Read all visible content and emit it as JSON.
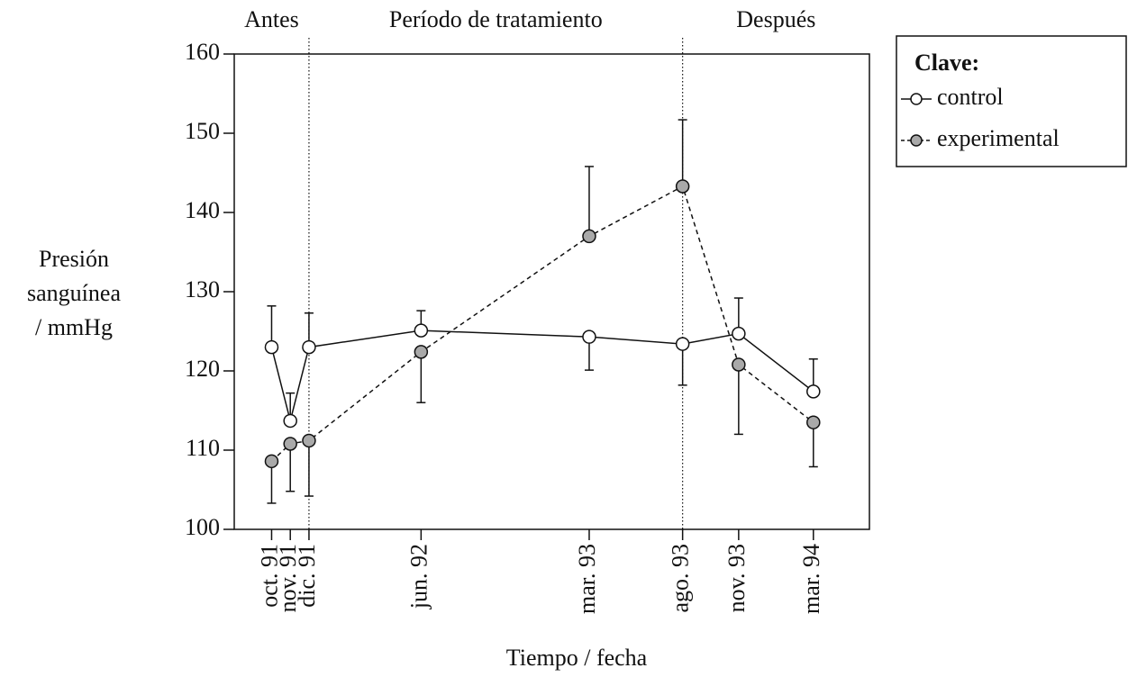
{
  "chart_data": {
    "type": "line",
    "xlabel": "Tiempo / fecha",
    "ylabel": [
      "Presión",
      "sanguínea",
      "/ mmHg"
    ],
    "x": [
      "1991-10",
      "1991-11",
      "1991-12",
      "1992-06",
      "1993-03",
      "1993-08",
      "1993-11",
      "1994-03"
    ],
    "xticks": [
      {
        "value": "1991-10",
        "label": "oct. 91"
      },
      {
        "value": "1991-11",
        "label": "nov. 91"
      },
      {
        "value": "1991-12",
        "label": "dic. 91"
      },
      {
        "value": "1992-06",
        "label": "jun. 92"
      },
      {
        "value": "1993-03",
        "label": "mar. 93"
      },
      {
        "value": "1993-08",
        "label": "ago. 93"
      },
      {
        "value": "1993-11",
        "label": "nov. 93"
      },
      {
        "value": "1994-03",
        "label": "mar. 94"
      }
    ],
    "xlim": [
      "1991-08",
      "1994-06"
    ],
    "ylim": [
      100,
      160
    ],
    "yticks": [
      100,
      110,
      120,
      130,
      140,
      150,
      160
    ],
    "periods": [
      "Antes",
      "Período de tratamiento",
      "Después"
    ],
    "dividers": [
      "1991-12",
      "1993-08"
    ],
    "legend_title": "Clave:",
    "legend": "upper right outside",
    "series": [
      {
        "name": "control",
        "color": "#ffffff",
        "line": "solid",
        "values": [
          123,
          113.7,
          123,
          125.1,
          124.3,
          123.4,
          124.7,
          117.4
        ],
        "errors": [
          5.2,
          3.5,
          4.3,
          2.5,
          4.2,
          5.2,
          4.5,
          4.1
        ],
        "error_side": [
          "up",
          "up",
          "up",
          "up",
          "down",
          "down",
          "up",
          "up"
        ]
      },
      {
        "name": "experimental",
        "color": "#a9a9a9",
        "line": "dashed",
        "values": [
          108.6,
          110.8,
          111.2,
          122.4,
          137,
          143.3,
          120.8,
          113.5
        ],
        "errors": [
          5.3,
          6,
          7,
          6.4,
          8.8,
          8.4,
          8.8,
          5.6
        ],
        "error_side": [
          "down",
          "down",
          "down",
          "down",
          "up",
          "up",
          "down",
          "down"
        ]
      }
    ]
  }
}
